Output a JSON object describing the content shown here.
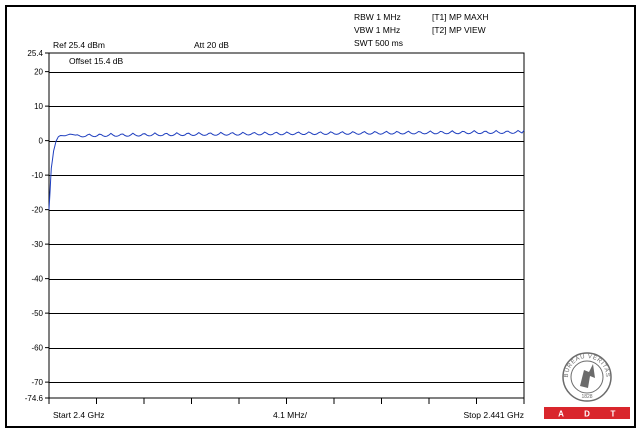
{
  "analyzer": {
    "rbw": "RBW 1 MHz",
    "vbw": "VBW 1 MHz",
    "swt": "SWT 500 ms",
    "trace1": "[T1] MP MAXH",
    "trace2": "[T2] MP VIEW",
    "ref": "Ref 25.4 dBm",
    "att": "Att 20 dB",
    "offset": "Offset 15.4 dB",
    "start": "Start 2.4 GHz",
    "span_div": "4.1 MHz/",
    "stop": "Stop 2.441 GHz"
  },
  "logo": {
    "seal_text": "BUREAU VERITAS",
    "year": "1828",
    "brand_letters": [
      "A",
      "D",
      "T"
    ],
    "brand_color": "#d9262c"
  },
  "colors": {
    "trace": "#1f3fbf",
    "grid": "#000000"
  },
  "chart_data": {
    "type": "line",
    "x_range": [
      2.4,
      2.441
    ],
    "x_unit": "GHz",
    "ylim": [
      -74.6,
      25.4
    ],
    "y_ticks": [
      {
        "value": 25.4,
        "label": "25.4"
      },
      {
        "value": 20,
        "label": "20"
      },
      {
        "value": 10,
        "label": "10"
      },
      {
        "value": 0,
        "label": "0"
      },
      {
        "value": -10,
        "label": "-10"
      },
      {
        "value": -20,
        "label": "-20"
      },
      {
        "value": -30,
        "label": "-30"
      },
      {
        "value": -40,
        "label": "-40"
      },
      {
        "value": -50,
        "label": "-50"
      },
      {
        "value": -60,
        "label": "-60"
      },
      {
        "value": -70,
        "label": "-70"
      },
      {
        "value": -74.6,
        "label": "-74.6"
      }
    ],
    "gridlines": [
      20,
      10,
      0,
      -10,
      -20,
      -30,
      -40,
      -50,
      -60,
      -70
    ],
    "x_divisions": 10,
    "grid": true,
    "series": [
      {
        "points": [
          [
            2.4,
            -20
          ],
          [
            2.4001,
            -14
          ],
          [
            2.4002,
            -8
          ],
          [
            2.4004,
            -3
          ],
          [
            2.4006,
            -0.2
          ],
          [
            2.4008,
            1.1
          ],
          [
            2.401,
            1.5
          ],
          [
            2.4014,
            1.4
          ],
          [
            2.4018,
            1.9
          ],
          [
            2.4023,
            1.6
          ],
          [
            2.403,
            2.0
          ],
          [
            2.405,
            2.1
          ],
          [
            2.41,
            2.3
          ],
          [
            2.42,
            2.6
          ],
          [
            2.43,
            2.8
          ],
          [
            2.441,
            3.0
          ]
        ]
      }
    ]
  }
}
